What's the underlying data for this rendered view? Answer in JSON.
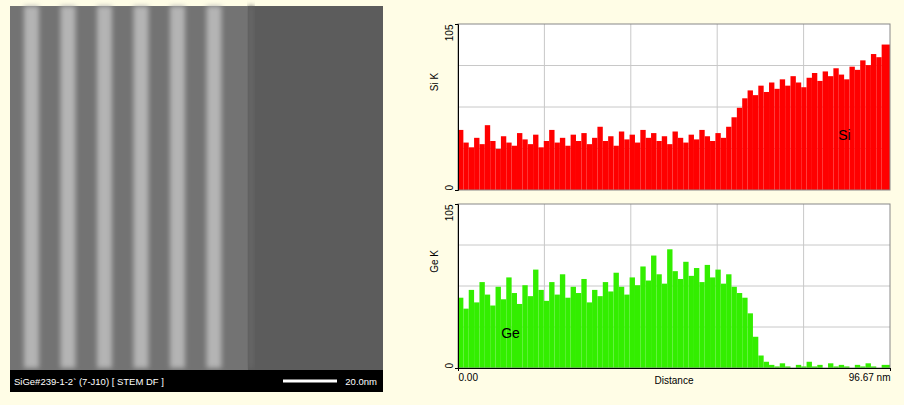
{
  "figure": {
    "image_caption": "SiGe#239-1-2` (7-J10) [ STEM DF ]",
    "scale_bar_label": "20.0nm"
  },
  "chart_data": [
    {
      "type": "bar",
      "ylabel": "Si K",
      "xlim": [
        0,
        96.67
      ],
      "ylim": [
        0,
        105
      ],
      "yticks": [
        0,
        105
      ],
      "tick_labels": "y",
      "grid": true,
      "x": [
        0,
        1.2,
        2.4,
        3.6,
        4.8,
        6,
        7.2,
        8.4,
        9.6,
        10.8,
        12,
        13.2,
        14.4,
        15.6,
        16.8,
        18,
        19.2,
        20.4,
        21.6,
        22.8,
        24,
        25.2,
        26.4,
        27.6,
        28.8,
        30,
        31.2,
        32.4,
        33.6,
        34.8,
        36,
        37.2,
        38.4,
        39.6,
        40.8,
        42,
        43.2,
        44.4,
        45.6,
        46.8,
        48,
        49.2,
        50.4,
        51.6,
        52.8,
        54,
        55.2,
        56.4,
        57.6,
        58.8,
        60,
        61.2,
        62.4,
        63.6,
        64.8,
        66,
        67.2,
        68.4,
        69.6,
        70.8,
        72,
        73.2,
        74.4,
        75.6,
        76.8,
        78,
        79.2,
        80.4,
        81.6,
        82.8,
        84,
        85.2,
        86.4,
        87.6,
        88.8,
        90,
        91.2,
        92.4,
        93.6,
        94.8
      ],
      "series": [
        {
          "name": "Si",
          "color": "#ff0000",
          "values": [
            38,
            30,
            27,
            33,
            29,
            41,
            31,
            26,
            34,
            30,
            28,
            36,
            32,
            29,
            35,
            27,
            31,
            38,
            30,
            33,
            28,
            35,
            31,
            36,
            29,
            33,
            40,
            31,
            34,
            28,
            37,
            32,
            35,
            30,
            38,
            33,
            36,
            31,
            34,
            29,
            37,
            33,
            30,
            35,
            32,
            38,
            34,
            31,
            36,
            33,
            40,
            46,
            52,
            58,
            63,
            60,
            66,
            62,
            68,
            64,
            70,
            66,
            72,
            68,
            65,
            71,
            74,
            69,
            75,
            72,
            77,
            73,
            70,
            78,
            76,
            82,
            79,
            86,
            84,
            92
          ]
        }
      ]
    },
    {
      "type": "bar",
      "ylabel": "Ge K",
      "xlabel": "Distance",
      "xlim": [
        0,
        96.67
      ],
      "ylim": [
        0,
        105
      ],
      "yticks": [
        0,
        105
      ],
      "xticks": [
        {
          "value": 0,
          "label": "0.00"
        },
        {
          "value": 96.67,
          "label": "96.67 nm"
        }
      ],
      "grid": true,
      "x": [
        0,
        1.2,
        2.4,
        3.6,
        4.8,
        6,
        7.2,
        8.4,
        9.6,
        10.8,
        12,
        13.2,
        14.4,
        15.6,
        16.8,
        18,
        19.2,
        20.4,
        21.6,
        22.8,
        24,
        25.2,
        26.4,
        27.6,
        28.8,
        30,
        31.2,
        32.4,
        33.6,
        34.8,
        36,
        37.2,
        38.4,
        39.6,
        40.8,
        42,
        43.2,
        44.4,
        45.6,
        46.8,
        48,
        49.2,
        50.4,
        51.6,
        52.8,
        54,
        55.2,
        56.4,
        57.6,
        58.8,
        60,
        61.2,
        62.4,
        63.6,
        64.8,
        66,
        67.2,
        68.4,
        69.6,
        70.8,
        72,
        73.2,
        74.4,
        75.6,
        76.8,
        78,
        79.2,
        80.4,
        81.6,
        82.8,
        84,
        85.2,
        86.4,
        87.6,
        88.8,
        90,
        91.2,
        92.4,
        93.6,
        94.8
      ],
      "series": [
        {
          "name": "Ge",
          "color": "#33ee00",
          "values": [
            45,
            38,
            50,
            42,
            55,
            47,
            40,
            52,
            44,
            58,
            48,
            41,
            53,
            46,
            63,
            50,
            43,
            55,
            47,
            60,
            45,
            52,
            48,
            57,
            42,
            50,
            46,
            55,
            49,
            61,
            52,
            47,
            58,
            53,
            65,
            56,
            72,
            60,
            54,
            76,
            62,
            57,
            68,
            59,
            64,
            55,
            66,
            58,
            63,
            54,
            60,
            52,
            48,
            45,
            35,
            20,
            8,
            4,
            2,
            1,
            3,
            1,
            0,
            2,
            1,
            4,
            1,
            2,
            0,
            3,
            1,
            2,
            1,
            0,
            2,
            1,
            3,
            1,
            0,
            2
          ]
        }
      ]
    }
  ]
}
